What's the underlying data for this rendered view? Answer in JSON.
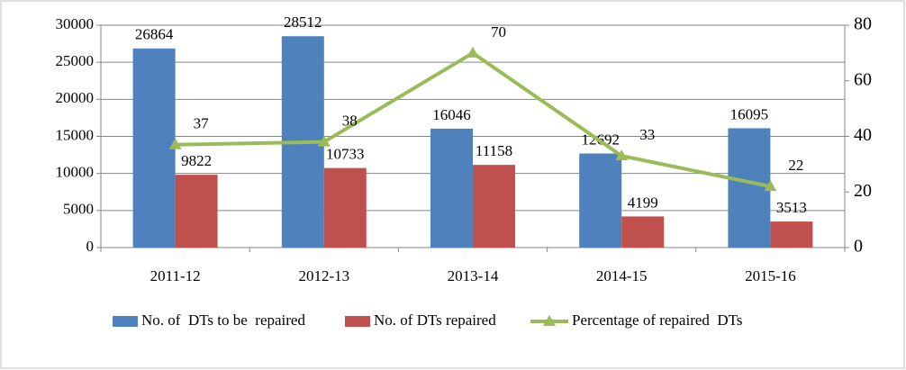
{
  "chart_data": {
    "type": "bar",
    "categories": [
      "2011-12",
      "2012-13",
      "2013-14",
      "2014-15",
      "2015-16"
    ],
    "series": [
      {
        "name": "No. of  DTs to be  repaired",
        "type": "bar",
        "color": "#4f81bd",
        "values": [
          26864,
          28512,
          16046,
          12692,
          16095
        ]
      },
      {
        "name": "No. of DTs repaired",
        "type": "bar",
        "color": "#c0504d",
        "values": [
          9822,
          10733,
          11158,
          4199,
          3513
        ]
      },
      {
        "name": "Percentage of repaired  DTs",
        "type": "line",
        "axis": "y2",
        "color": "#9bbb59",
        "values": [
          37,
          38,
          70,
          33,
          22
        ]
      }
    ],
    "ylim": [
      0,
      30000
    ],
    "yticks": [
      0,
      5000,
      10000,
      15000,
      20000,
      25000,
      30000
    ],
    "y2lim": [
      0,
      80
    ],
    "y2ticks": [
      0,
      20,
      40,
      60,
      80
    ],
    "grid": true,
    "legend": "bottom"
  }
}
